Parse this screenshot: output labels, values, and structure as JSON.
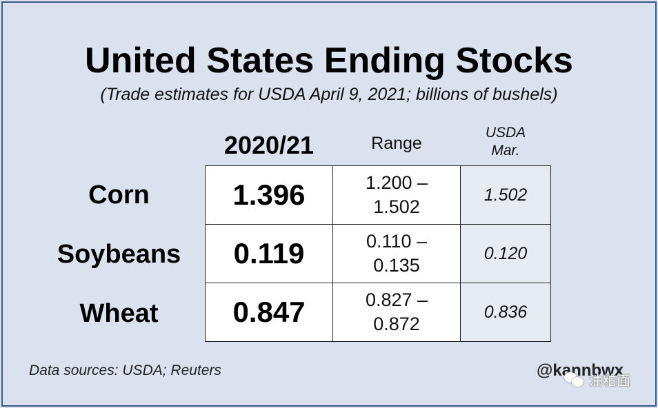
{
  "chart_data": {
    "type": "table",
    "title": "United States Ending Stocks",
    "subtitle": "(Trade estimates for USDA April 9, 2021; billions of bushels)",
    "columns": [
      "2020/21",
      "Range",
      "USDA",
      "Mar."
    ],
    "rows": [
      {
        "label": "Corn",
        "estimate": "1.396",
        "range_low": "1.200 –",
        "range_high": "1.502",
        "usda_mar": "1.502"
      },
      {
        "label": "Soybeans",
        "estimate": "0.119",
        "range_low": "0.110 –",
        "range_high": "0.135",
        "usda_mar": "0.120"
      },
      {
        "label": "Wheat",
        "estimate": "0.847",
        "range_low": "0.827 –",
        "range_high": "0.872",
        "usda_mar": "0.836"
      }
    ],
    "source": "Data sources: USDA; Reuters",
    "handle": "@kannbwx"
  },
  "watermark": {
    "text": "油粕面",
    "icon": "wechat-icon"
  },
  "colors": {
    "background": "#dbe2ef",
    "frame": "#3d5a80",
    "cell": "#ffffff",
    "usda_cell": "#e6ebf4"
  }
}
